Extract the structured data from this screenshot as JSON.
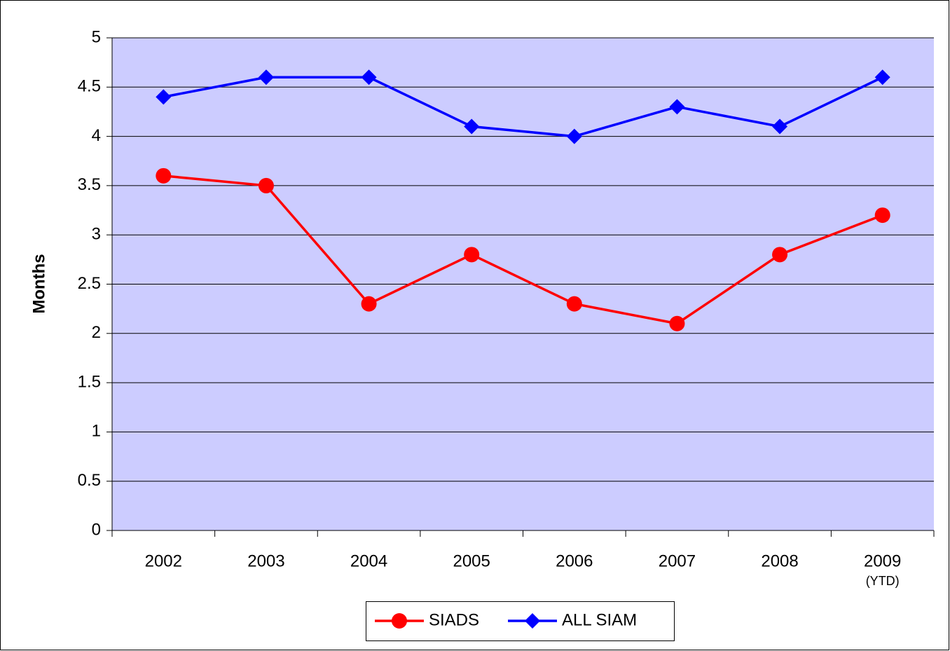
{
  "chart_data": {
    "type": "line",
    "y_label": "Months",
    "categories": [
      "2002",
      "2003",
      "2004",
      "2005",
      "2006",
      "2007",
      "2008",
      "2009"
    ],
    "category_sublabels": [
      null,
      null,
      null,
      null,
      null,
      null,
      null,
      "(YTD)"
    ],
    "series": [
      {
        "name": "SIADS",
        "color": "#ff0000",
        "marker": "circle",
        "values": [
          3.6,
          3.5,
          2.3,
          2.8,
          2.3,
          2.1,
          2.8,
          3.2
        ]
      },
      {
        "name": "ALL SIAM",
        "color": "#0000ff",
        "marker": "diamond",
        "values": [
          4.4,
          4.6,
          4.6,
          4.1,
          4.0,
          4.3,
          4.1,
          4.6
        ]
      }
    ],
    "ylim": [
      0,
      5
    ],
    "yticks": [
      0,
      0.5,
      1,
      1.5,
      2,
      2.5,
      3,
      3.5,
      4,
      4.5,
      5
    ],
    "grid": true,
    "plot_background": "#ccccff",
    "legend": "bottom"
  }
}
